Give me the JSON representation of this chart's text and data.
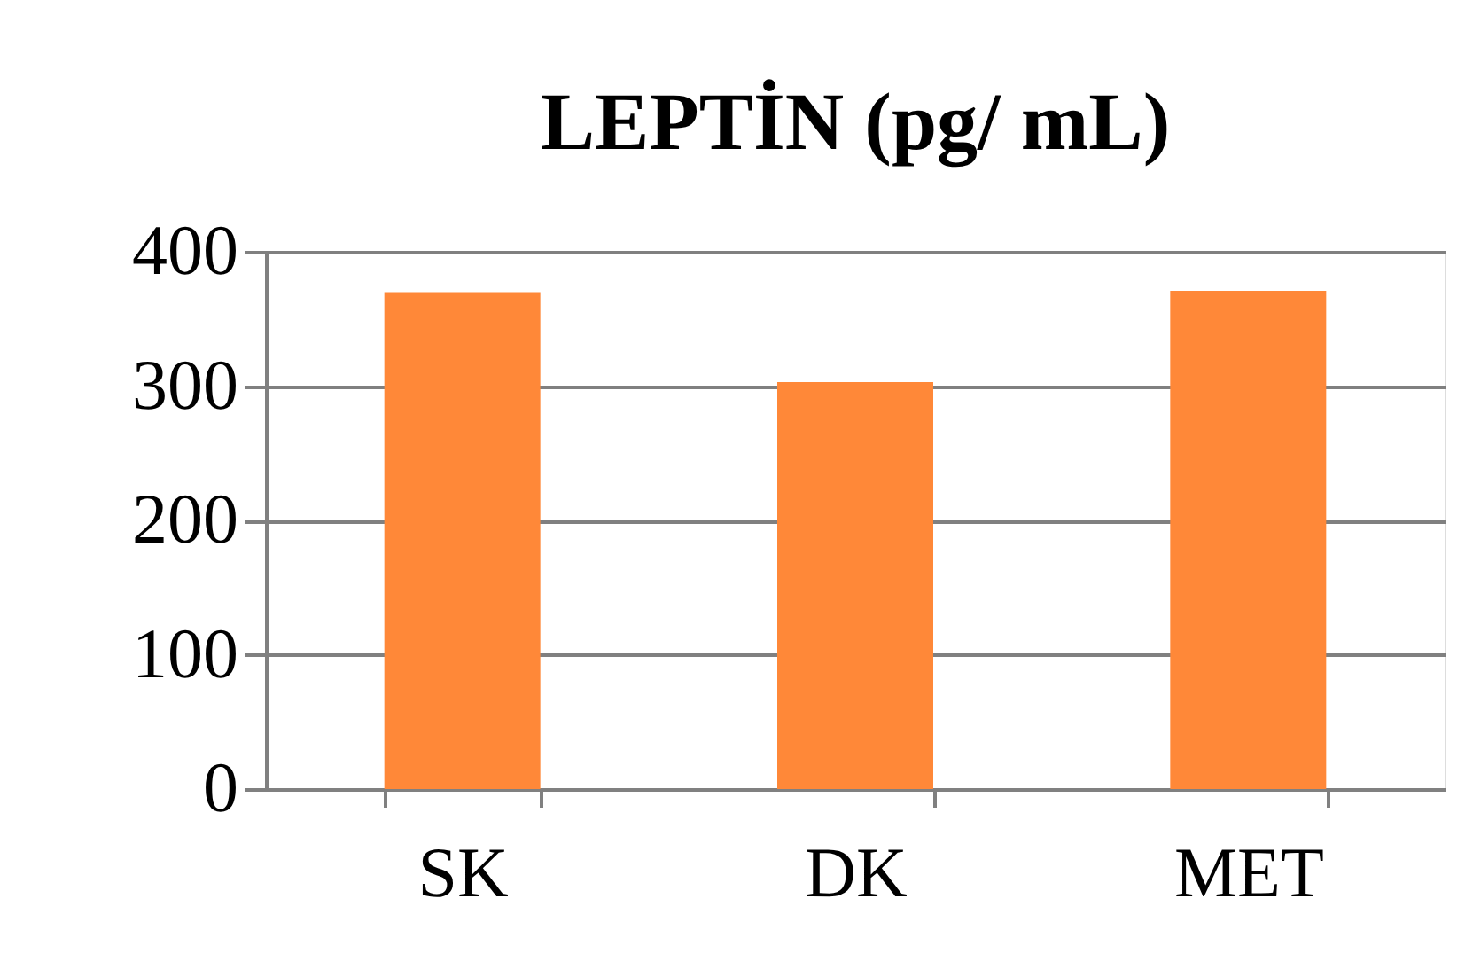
{
  "chart_data": {
    "type": "bar",
    "title": "LEPTİN (pg/ mL)",
    "categories": [
      "SK",
      "DK",
      "MET"
    ],
    "values": [
      370,
      303,
      371
    ],
    "color": "#ff8838",
    "ylim": [
      0,
      400
    ],
    "yticks": [
      0,
      100,
      200,
      300,
      400
    ],
    "grid": "y"
  }
}
